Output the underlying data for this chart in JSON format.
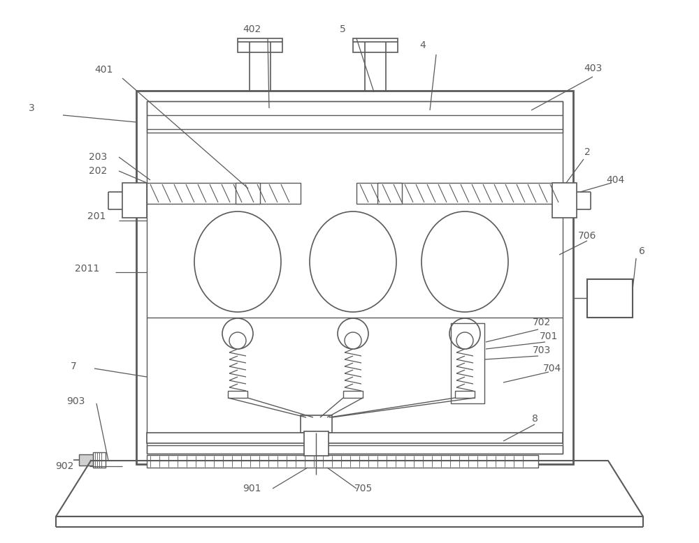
{
  "bg_color": "#ffffff",
  "line_color": "#5a5a5a",
  "fig_width": 10.0,
  "fig_height": 7.78,
  "dpi": 100
}
